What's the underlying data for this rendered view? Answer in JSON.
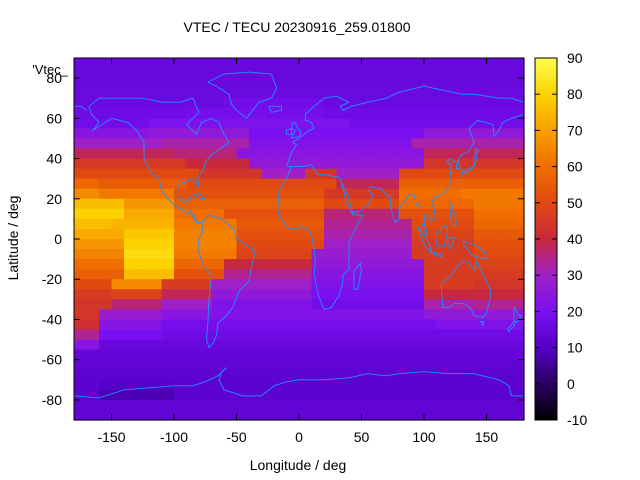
{
  "chart_data": {
    "type": "heatmap",
    "title": "VTEC / TECU 20230916_259.01800",
    "xlabel": "Longitude / deg",
    "ylabel": "Latitude / deg",
    "key_label": "'Vtec_",
    "xlim": [
      -180,
      180
    ],
    "ylim": [
      -90,
      90
    ],
    "xticks": [
      -150,
      -100,
      -50,
      0,
      50,
      100,
      150
    ],
    "yticks": [
      -80,
      -60,
      -40,
      -20,
      0,
      20,
      40,
      60,
      80
    ],
    "colorbar": {
      "range": [
        -10,
        90
      ],
      "ticks": [
        -10,
        0,
        10,
        20,
        30,
        40,
        50,
        60,
        70,
        80,
        90
      ],
      "colors": [
        "#000000",
        "#2a0060",
        "#5500c8",
        "#7a10f0",
        "#a020c8",
        "#c8283c",
        "#e04a10",
        "#f06e00",
        "#f8a000",
        "#fcd200",
        "#ffff50"
      ]
    },
    "grid": false,
    "lon_step": 5,
    "lat_step": 5,
    "lats": [
      87.5,
      82.5,
      77.5,
      72.5,
      67.5,
      62.5,
      57.5,
      52.5,
      47.5,
      42.5,
      37.5,
      32.5,
      27.5,
      22.5,
      17.5,
      12.5,
      7.5,
      2.5,
      -2.5,
      -7.5,
      -12.5,
      -17.5,
      -22.5,
      -27.5,
      -32.5,
      -37.5,
      -42.5,
      -47.5,
      -52.5,
      -57.5,
      -62.5,
      -67.5,
      -72.5,
      -77.5,
      -82.5,
      -87.5
    ],
    "vtec_by_lat": {
      "87.5": {
        "default": 15,
        "segments": []
      },
      "82.5": {
        "default": 15,
        "segments": []
      },
      "77.5": {
        "default": 15,
        "segments": []
      },
      "72.5": {
        "default": 16,
        "segments": []
      },
      "67.5": {
        "default": 16,
        "segments": [
          [
            -60,
            20,
            18
          ]
        ]
      },
      "62.5": {
        "default": 17,
        "segments": [
          [
            -90,
            20,
            19
          ]
        ]
      },
      "57.5": {
        "default": 18,
        "segments": [
          [
            -120,
            40,
            21
          ]
        ]
      },
      "52.5": {
        "default": 20,
        "segments": [
          [
            -180,
            -120,
            24
          ],
          [
            -120,
            -40,
            26
          ],
          [
            100,
            180,
            26
          ]
        ]
      },
      "47.5": {
        "default": 22,
        "segments": [
          [
            -180,
            -110,
            30
          ],
          [
            -110,
            -40,
            32
          ],
          [
            90,
            180,
            32
          ]
        ]
      },
      "42.5": {
        "default": 24,
        "segments": [
          [
            -180,
            -100,
            38
          ],
          [
            -100,
            -50,
            36
          ],
          [
            100,
            180,
            38
          ]
        ]
      },
      "37.5": {
        "default": 26,
        "segments": [
          [
            -180,
            -90,
            45
          ],
          [
            -90,
            -40,
            40
          ],
          [
            100,
            180,
            44
          ]
        ]
      },
      "32.5": {
        "default": 30,
        "segments": [
          [
            -180,
            -80,
            50
          ],
          [
            -80,
            -30,
            44
          ],
          [
            5,
            30,
            44
          ],
          [
            80,
            180,
            50
          ]
        ]
      },
      "27.5": {
        "default": 38,
        "segments": [
          [
            -180,
            -160,
            58
          ],
          [
            -160,
            -90,
            55
          ],
          [
            -90,
            30,
            50
          ],
          [
            80,
            180,
            56
          ]
        ]
      },
      "22.5": {
        "default": 45,
        "segments": [
          [
            -180,
            -160,
            66
          ],
          [
            -160,
            -100,
            62
          ],
          [
            -100,
            20,
            52
          ],
          [
            80,
            130,
            60
          ],
          [
            130,
            180,
            62
          ]
        ]
      },
      "17.5": {
        "default": 50,
        "segments": [
          [
            -180,
            -140,
            76
          ],
          [
            -140,
            -100,
            68
          ],
          [
            -100,
            20,
            56
          ],
          [
            80,
            140,
            58
          ],
          [
            140,
            180,
            62
          ]
        ]
      },
      "12.5": {
        "default": 52,
        "segments": [
          [
            -180,
            -140,
            80
          ],
          [
            -140,
            -100,
            72
          ],
          [
            -100,
            -60,
            60
          ],
          [
            -60,
            20,
            52
          ],
          [
            20,
            80,
            36
          ],
          [
            80,
            140,
            52
          ],
          [
            140,
            180,
            60
          ]
        ]
      },
      "7.5": {
        "default": 50,
        "segments": [
          [
            -180,
            -150,
            76
          ],
          [
            -150,
            -100,
            74
          ],
          [
            -100,
            -50,
            62
          ],
          [
            -50,
            20,
            54
          ],
          [
            20,
            90,
            34
          ],
          [
            90,
            140,
            50
          ],
          [
            140,
            180,
            58
          ]
        ]
      },
      "2.5": {
        "default": 48,
        "segments": [
          [
            -180,
            -140,
            72
          ],
          [
            -140,
            -100,
            78
          ],
          [
            -100,
            -50,
            64
          ],
          [
            -50,
            20,
            52
          ],
          [
            20,
            90,
            32
          ],
          [
            90,
            140,
            48
          ],
          [
            140,
            180,
            54
          ]
        ]
      },
      "-2.5": {
        "default": 46,
        "segments": [
          [
            -180,
            -140,
            68
          ],
          [
            -140,
            -100,
            80
          ],
          [
            -100,
            -50,
            64
          ],
          [
            -50,
            20,
            50
          ],
          [
            20,
            90,
            30
          ],
          [
            90,
            140,
            46
          ],
          [
            140,
            180,
            52
          ]
        ]
      },
      "-7.5": {
        "default": 45,
        "segments": [
          [
            -180,
            -140,
            64
          ],
          [
            -140,
            -100,
            82
          ],
          [
            -100,
            -50,
            62
          ],
          [
            -50,
            10,
            48
          ],
          [
            10,
            90,
            28
          ],
          [
            90,
            140,
            46
          ],
          [
            140,
            180,
            50
          ]
        ]
      },
      "-12.5": {
        "default": 42,
        "segments": [
          [
            -180,
            -140,
            60
          ],
          [
            -140,
            -100,
            80
          ],
          [
            -100,
            -60,
            58
          ],
          [
            -60,
            10,
            40
          ],
          [
            10,
            100,
            26
          ],
          [
            100,
            140,
            46
          ],
          [
            140,
            180,
            48
          ]
        ]
      },
      "-17.5": {
        "default": 38,
        "segments": [
          [
            -180,
            -140,
            56
          ],
          [
            -140,
            -100,
            76
          ],
          [
            -100,
            -60,
            52
          ],
          [
            -60,
            10,
            34
          ],
          [
            10,
            100,
            24
          ],
          [
            100,
            140,
            46
          ],
          [
            140,
            180,
            46
          ]
        ]
      },
      "-22.5": {
        "default": 34,
        "segments": [
          [
            -180,
            -150,
            50
          ],
          [
            -150,
            -110,
            66
          ],
          [
            -110,
            -70,
            46
          ],
          [
            -70,
            10,
            30
          ],
          [
            10,
            100,
            22
          ],
          [
            100,
            140,
            46
          ],
          [
            140,
            180,
            44
          ]
        ]
      },
      "-27.5": {
        "default": 30,
        "segments": [
          [
            -180,
            -150,
            46
          ],
          [
            -150,
            -110,
            48
          ],
          [
            -110,
            -70,
            38
          ],
          [
            -70,
            10,
            26
          ],
          [
            10,
            100,
            20
          ],
          [
            100,
            140,
            40
          ],
          [
            140,
            180,
            40
          ]
        ]
      },
      "-32.5": {
        "default": 26,
        "segments": [
          [
            -180,
            -150,
            44
          ],
          [
            -150,
            -110,
            36
          ],
          [
            -110,
            -70,
            30
          ],
          [
            -70,
            10,
            22
          ],
          [
            10,
            100,
            18
          ],
          [
            100,
            140,
            32
          ],
          [
            140,
            180,
            34
          ]
        ]
      },
      "-37.5": {
        "default": 22,
        "segments": [
          [
            -180,
            -160,
            44
          ],
          [
            -160,
            -110,
            28
          ],
          [
            -110,
            -70,
            24
          ],
          [
            100,
            180,
            26
          ]
        ]
      },
      "-42.5": {
        "default": 19,
        "segments": [
          [
            -180,
            -160,
            42
          ],
          [
            -160,
            -110,
            24
          ],
          [
            110,
            180,
            22
          ]
        ]
      },
      "-47.5": {
        "default": 17,
        "segments": [
          [
            -180,
            -160,
            34
          ],
          [
            -160,
            -110,
            20
          ]
        ]
      },
      "-52.5": {
        "default": 15,
        "segments": [
          [
            -180,
            -160,
            24
          ]
        ]
      },
      "-57.5": {
        "default": 14,
        "segments": []
      },
      "-62.5": {
        "default": 13,
        "segments": []
      },
      "-67.5": {
        "default": 12,
        "segments": []
      },
      "-72.5": {
        "default": 12,
        "segments": [
          [
            -160,
            -100,
            10
          ]
        ]
      },
      "-77.5": {
        "default": 12,
        "segments": [
          [
            -160,
            -100,
            8
          ]
        ]
      },
      "-82.5": {
        "default": 13,
        "segments": []
      },
      "-87.5": {
        "default": 13,
        "segments": []
      }
    },
    "coastline_color": "#1e90ff"
  }
}
